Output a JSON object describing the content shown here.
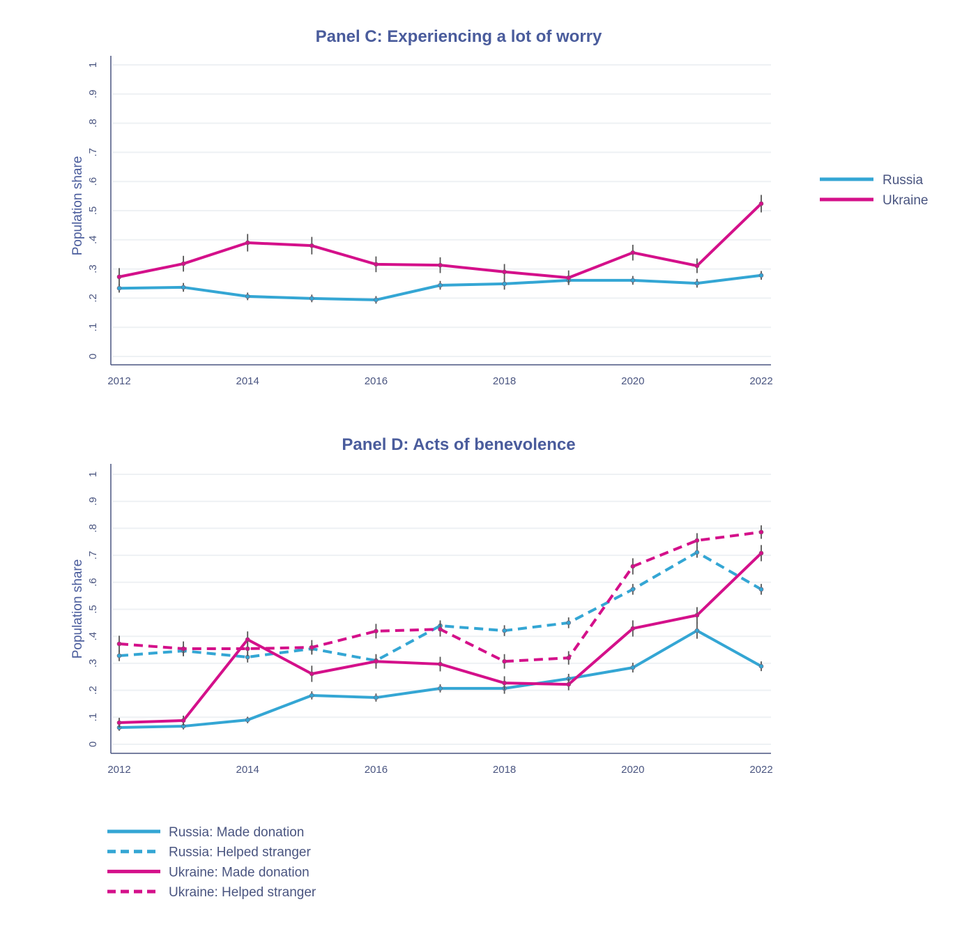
{
  "colors": {
    "russia": "#34a6d4",
    "ukraine": "#d4108a",
    "axis": "#4a5580",
    "grid": "#eef1f4",
    "errbar": "#555555",
    "title": "#4a5c9c"
  },
  "chart_data": [
    {
      "type": "line",
      "title": "Panel C: Experiencing a lot of worry",
      "xlabel": "",
      "ylabel": "Population share",
      "x": [
        2012,
        2013,
        2014,
        2015,
        2016,
        2017,
        2018,
        2019,
        2020,
        2021,
        2022
      ],
      "xticks": [
        "2012",
        "2014",
        "2016",
        "2018",
        "2020",
        "2022"
      ],
      "yticks": [
        "0",
        ".1",
        ".2",
        ".3",
        ".4",
        ".5",
        ".6",
        ".7",
        ".8",
        ".9",
        "1"
      ],
      "ylim": [
        0,
        1
      ],
      "grid": true,
      "legend_position": "right",
      "series": [
        {
          "name": "Russia",
          "color": "russia",
          "dashed": false,
          "values": [
            0.234,
            0.237,
            0.206,
            0.199,
            0.194,
            0.244,
            0.249,
            0.261,
            0.261,
            0.251,
            0.278
          ],
          "err": [
            0.015,
            0.015,
            0.013,
            0.013,
            0.013,
            0.015,
            0.02,
            0.015,
            0.015,
            0.015,
            0.015
          ]
        },
        {
          "name": "Ukraine",
          "color": "ukraine",
          "dashed": false,
          "values": [
            0.273,
            0.318,
            0.39,
            0.38,
            0.316,
            0.313,
            0.29,
            0.27,
            0.356,
            0.311,
            0.524
          ],
          "err": [
            0.03,
            0.027,
            0.03,
            0.03,
            0.027,
            0.027,
            0.027,
            0.025,
            0.027,
            0.025,
            0.03
          ]
        }
      ]
    },
    {
      "type": "line",
      "title": "Panel D: Acts of benevolence",
      "xlabel": "",
      "ylabel": "Population share",
      "x": [
        2012,
        2013,
        2014,
        2015,
        2016,
        2017,
        2018,
        2019,
        2020,
        2021,
        2022
      ],
      "xticks": [
        "2012",
        "2014",
        "2016",
        "2018",
        "2020",
        "2022"
      ],
      "yticks": [
        "0",
        ".1",
        ".2",
        ".3",
        ".4",
        ".5",
        ".6",
        ".7",
        ".8",
        ".9",
        "1"
      ],
      "ylim": [
        0,
        1
      ],
      "grid": true,
      "legend_position": "bottom-left",
      "series": [
        {
          "name": "Russia: Made donation",
          "color": "russia",
          "dashed": false,
          "values": [
            0.062,
            0.067,
            0.09,
            0.181,
            0.173,
            0.207,
            0.207,
            0.243,
            0.284,
            0.421,
            0.289
          ],
          "err": [
            0.012,
            0.012,
            0.012,
            0.015,
            0.015,
            0.015,
            0.02,
            0.018,
            0.018,
            0.03,
            0.018
          ]
        },
        {
          "name": "Russia: Helped stranger",
          "color": "russia",
          "dashed": true,
          "values": [
            0.328,
            0.346,
            0.323,
            0.354,
            0.31,
            0.439,
            0.421,
            0.45,
            0.574,
            0.711,
            0.574
          ],
          "err": [
            0.02,
            0.02,
            0.02,
            0.02,
            0.02,
            0.02,
            0.02,
            0.02,
            0.02,
            0.02,
            0.02
          ]
        },
        {
          "name": "Ukraine: Made donation",
          "color": "ukraine",
          "dashed": false,
          "values": [
            0.08,
            0.088,
            0.388,
            0.261,
            0.307,
            0.297,
            0.227,
            0.222,
            0.429,
            0.478,
            0.708
          ],
          "err": [
            0.018,
            0.018,
            0.03,
            0.03,
            0.027,
            0.027,
            0.025,
            0.022,
            0.03,
            0.03,
            0.03
          ]
        },
        {
          "name": "Ukraine: Helped stranger",
          "color": "ukraine",
          "dashed": true,
          "values": [
            0.372,
            0.354,
            0.354,
            0.359,
            0.419,
            0.426,
            0.307,
            0.32,
            0.659,
            0.755,
            0.786
          ],
          "err": [
            0.03,
            0.027,
            0.027,
            0.027,
            0.027,
            0.027,
            0.027,
            0.025,
            0.03,
            0.027,
            0.025
          ]
        }
      ]
    }
  ]
}
